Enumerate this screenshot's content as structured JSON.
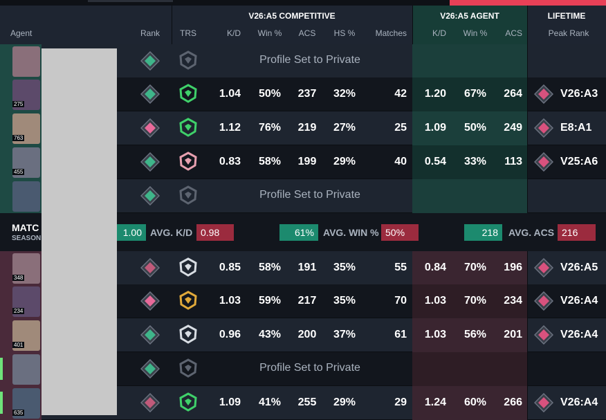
{
  "header": {
    "competitive": "V26:A5 COMPETITIVE",
    "agent": "V26:A5 AGENT",
    "lifetime": "LIFETIME",
    "columns": [
      "Agent",
      "Rank",
      "TRS",
      "K/D",
      "Win %",
      "ACS",
      "HS %",
      "Matches",
      "K/D",
      "Win %",
      "ACS",
      "Peak Rank"
    ]
  },
  "team1": [
    {
      "message": "Profile Set to Private"
    },
    {
      "level": "275",
      "kd": "1.04",
      "win": "50%",
      "acs": "237",
      "hs": "32%",
      "matches": "42",
      "agent_kd": "1.20",
      "agent_win": "67%",
      "agent_acs": "264",
      "peak": "V26:A3"
    },
    {
      "level": "763",
      "kd": "1.12",
      "win": "76%",
      "acs": "219",
      "hs": "27%",
      "matches": "25",
      "agent_kd": "1.09",
      "agent_win": "50%",
      "agent_acs": "249",
      "peak": "E8:A1"
    },
    {
      "level": "455",
      "kd": "0.83",
      "win": "58%",
      "acs": "199",
      "hs": "29%",
      "matches": "40",
      "agent_kd": "0.54",
      "agent_win": "33%",
      "agent_acs": "113",
      "peak": "V25:A6"
    },
    {
      "message": "Profile Set to Private"
    }
  ],
  "summary": {
    "title": "MATC",
    "subtitle": "SEASON",
    "kd_left": "1.00",
    "kd_label": "AVG. K/D",
    "kd_right": "0.98",
    "win_left": "61%",
    "win_label": "AVG. WIN %",
    "win_right": "50%",
    "acs_left": "218",
    "acs_label": "AVG. ACS",
    "acs_right": "216"
  },
  "team2": [
    {
      "level": "348",
      "kd": "0.85",
      "win": "58%",
      "acs": "191",
      "hs": "35%",
      "matches": "55",
      "agent_kd": "0.84",
      "agent_win": "70%",
      "agent_acs": "196",
      "peak": "V26:A5"
    },
    {
      "level": "234",
      "kd": "1.03",
      "win": "59%",
      "acs": "217",
      "hs": "35%",
      "matches": "70",
      "agent_kd": "1.03",
      "agent_win": "70%",
      "agent_acs": "234",
      "peak": "V26:A4"
    },
    {
      "level": "401",
      "kd": "0.96",
      "win": "43%",
      "acs": "200",
      "hs": "37%",
      "matches": "61",
      "agent_kd": "1.03",
      "agent_win": "56%",
      "agent_acs": "201",
      "peak": "V26:A4"
    },
    {
      "message": "Profile Set to Private"
    },
    {
      "level": "635",
      "kd": "1.09",
      "win": "41%",
      "acs": "255",
      "hs": "29%",
      "matches": "29",
      "agent_kd": "1.24",
      "agent_win": "60%",
      "agent_acs": "266",
      "peak": "V26:A4"
    }
  ]
}
